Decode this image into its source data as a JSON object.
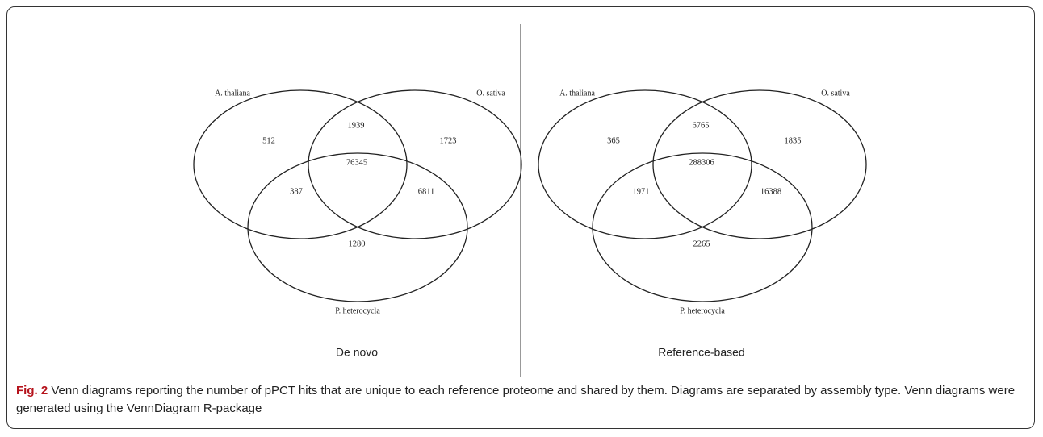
{
  "figure": {
    "panels": [
      {
        "title": "De novo",
        "sets": [
          "A. thaliana",
          "O. sativa",
          "P. heterocycla"
        ],
        "regions": [
          512,
          1939,
          1723,
          76345,
          387,
          6811,
          1280
        ]
      },
      {
        "title": "Reference-based",
        "sets": [
          "A. thaliana",
          "O. sativa",
          "P. heterocycla"
        ],
        "regions": [
          365,
          6765,
          1835,
          288306,
          1971,
          16388,
          2265
        ]
      }
    ],
    "caption": {
      "label": "Fig. 2",
      "text": "Venn diagrams reporting the number of pPCT hits that are unique to each reference proteome and shared by them. Diagrams are separated by assembly type. Venn diagrams were generated using the VennDiagram R-package"
    }
  }
}
